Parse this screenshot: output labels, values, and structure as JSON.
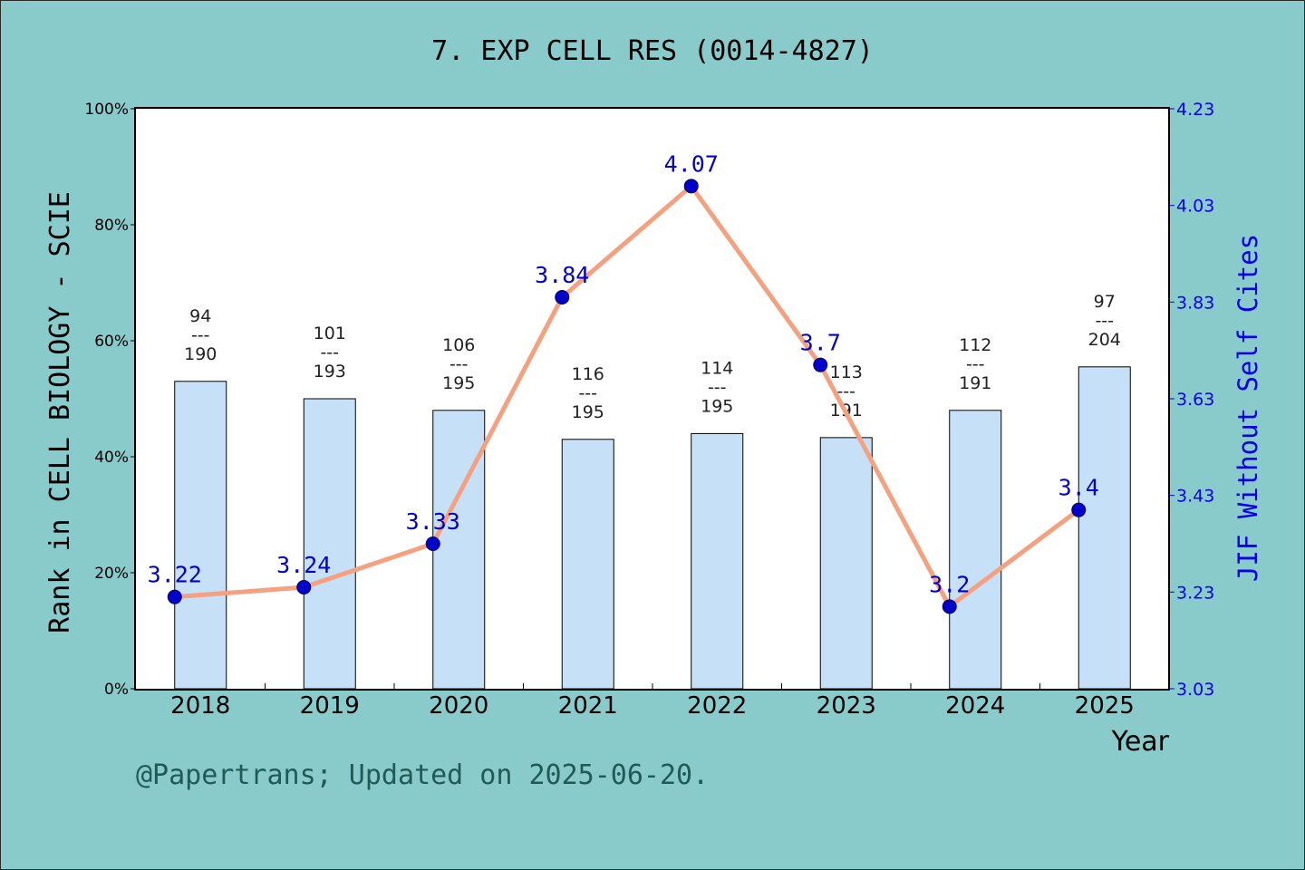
{
  "chart_data": {
    "type": "bar+line",
    "title": "7. EXP CELL RES (0014-4827)",
    "xlabel": "Year",
    "ylabel_left": "Rank in CELL BIOLOGY - SCIE",
    "ylabel_right": "JIF Without Self Cites",
    "footer": "@Papertrans; Updated on 2025-06-20.",
    "categories": [
      "2018",
      "2019",
      "2020",
      "2021",
      "2022",
      "2023",
      "2024",
      "2025"
    ],
    "left_axis": {
      "min": 0,
      "max": 100,
      "ticks": [
        "0%",
        "20%",
        "40%",
        "60%",
        "80%",
        "100%"
      ]
    },
    "right_axis": {
      "min": 3.03,
      "max": 4.23,
      "ticks": [
        "3.03",
        "3.23",
        "3.43",
        "3.63",
        "3.83",
        "4.03",
        "4.23"
      ]
    },
    "bars": {
      "values": [
        53,
        50,
        48,
        43,
        44,
        43.3,
        48,
        55.5
      ],
      "rank": [
        "94",
        "101",
        "106",
        "116",
        "114",
        "113",
        "112",
        "97"
      ],
      "total": [
        "190",
        "193",
        "195",
        "195",
        "195",
        "191",
        "191",
        "204"
      ],
      "separator": "---",
      "color": "#c5e0f7"
    },
    "line": {
      "values": [
        3.22,
        3.24,
        3.33,
        3.84,
        4.07,
        3.7,
        3.2,
        3.4
      ],
      "labels": [
        "3.22",
        "3.24",
        "3.33",
        "3.84",
        "4.07",
        "3.7",
        "3.2",
        "3.4"
      ],
      "line_color": "#f5a07e",
      "marker_color": "#0000cc"
    },
    "grid": false
  }
}
